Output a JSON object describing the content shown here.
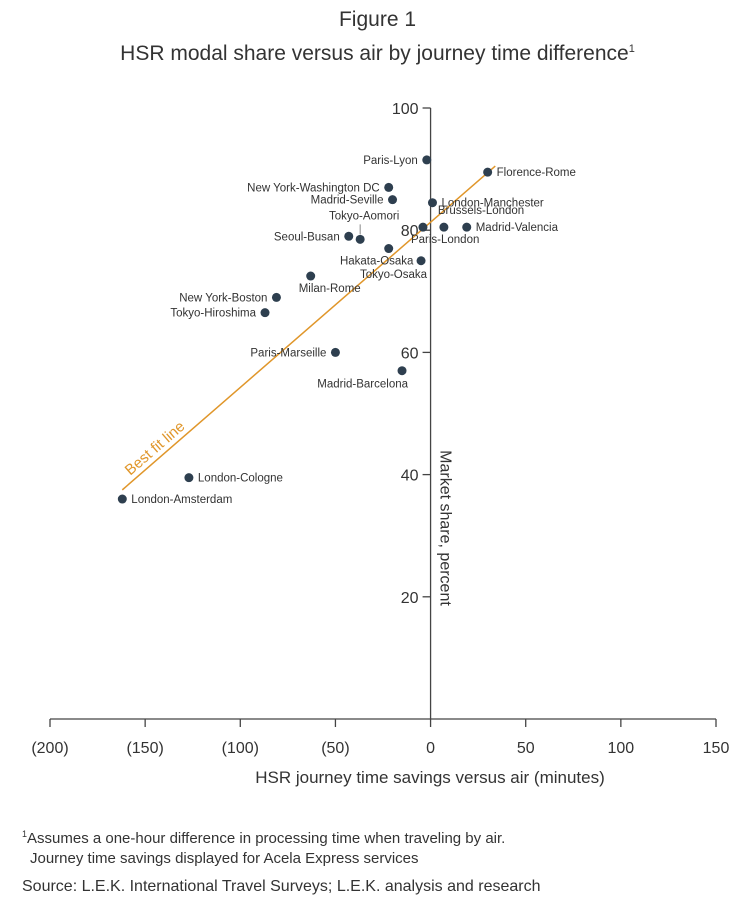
{
  "figure_label": "Figure 1",
  "title": "HSR modal share versus air by journey time difference",
  "title_superscript": "1",
  "footnote": {
    "marker": "1",
    "line1": "Assumes a one-hour difference in processing time when traveling by air.",
    "line2": "Journey time savings displayed for Acela Express services"
  },
  "source": "Source: L.E.K. International Travel Surveys; L.E.K. analysis and research",
  "colors": {
    "point": "#2e3f4f",
    "fit_line": "#e0962a",
    "axis": "#444444",
    "text": "#333333"
  },
  "chart_data": {
    "type": "scatter",
    "xlabel": "HSR journey time savings versus air (minutes)",
    "ylabel": "Market share, percent",
    "xlim": [
      -200,
      150
    ],
    "ylim": [
      0,
      100
    ],
    "x_ticks": [
      -200,
      -150,
      -100,
      -50,
      0,
      50,
      100,
      150
    ],
    "x_tick_labels": [
      "(200)",
      "(150)",
      "(100)",
      "(50)",
      "0",
      "50",
      "100",
      "150"
    ],
    "y_ticks": [
      20,
      40,
      60,
      80,
      100
    ],
    "y_tick_labels": [
      "20",
      "40",
      "60",
      "80",
      "100"
    ],
    "grid": false,
    "fit_line": {
      "label": "Best fit line",
      "x": [
        -162,
        34
      ],
      "y": [
        37.5,
        90.5
      ]
    },
    "points": [
      {
        "label": "Paris-Lyon",
        "x": -2,
        "y": 91.5,
        "label_side": "left"
      },
      {
        "label": "Florence-Rome",
        "x": 30,
        "y": 89.5,
        "label_side": "right"
      },
      {
        "label": "New York-Washington DC",
        "x": -22,
        "y": 87,
        "label_side": "left"
      },
      {
        "label": "Madrid-Seville",
        "x": -20,
        "y": 85,
        "label_side": "left"
      },
      {
        "label": "London-Manchester",
        "x": 1,
        "y": 84.5,
        "label_side": "right"
      },
      {
        "label": "Brussels-London",
        "x": 7,
        "y": 80.5,
        "label_side": "above-right"
      },
      {
        "label": "Madrid-Valencia",
        "x": 19,
        "y": 80.5,
        "label_side": "right"
      },
      {
        "label": "Paris-London",
        "x": -4,
        "y": 80.5,
        "label_side": "below-right"
      },
      {
        "label": "Tokyo-Aomori",
        "x": -37,
        "y": 78.5,
        "label_side": "above"
      },
      {
        "label": "Seoul-Busan",
        "x": -43,
        "y": 79,
        "label_side": "left"
      },
      {
        "label": "Hakata-Osaka",
        "x": -22,
        "y": 77,
        "label_side": "below"
      },
      {
        "label": "Tokyo-Osaka",
        "x": -5,
        "y": 75,
        "label_side": "below-left"
      },
      {
        "label": "Milan-Rome",
        "x": -63,
        "y": 72.5,
        "label_side": "below-right"
      },
      {
        "label": "New York-Boston",
        "x": -81,
        "y": 69,
        "label_side": "left"
      },
      {
        "label": "Tokyo-Hiroshima",
        "x": -87,
        "y": 66.5,
        "label_side": "left"
      },
      {
        "label": "Paris-Marseille",
        "x": -50,
        "y": 60,
        "label_side": "left"
      },
      {
        "label": "Madrid-Barcelona",
        "x": -15,
        "y": 57,
        "label_side": "below-left"
      },
      {
        "label": "London-Cologne",
        "x": -127,
        "y": 39.5,
        "label_side": "right"
      },
      {
        "label": "London-Amsterdam",
        "x": -162,
        "y": 36,
        "label_side": "right"
      }
    ]
  }
}
